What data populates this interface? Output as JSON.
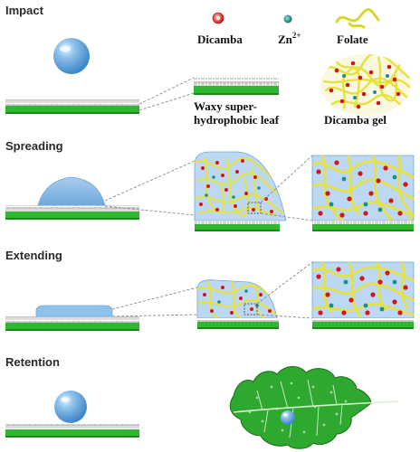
{
  "stages": {
    "impact": "Impact",
    "spreading": "Spreading",
    "extending": "Extending",
    "retention": "Retention"
  },
  "legend": {
    "dicamba": "Dicamba",
    "zn_base": "Zn",
    "zn_sup": "2+",
    "folate": "Folate",
    "leaf_line1": "Waxy super-",
    "leaf_line2": "hydrophobic leaf",
    "gel": "Dicamba gel"
  },
  "colors": {
    "green": "#2fb72f",
    "dark_green": "#178a17",
    "water": "#8ec2ea",
    "droplet": "#5aa5e0",
    "panel_bg": "#bcd8f2",
    "fiber": "#e6e23a",
    "dicamba": "#e02222",
    "zinc": "#1d8a8c",
    "leaf": "#2ea82e"
  }
}
